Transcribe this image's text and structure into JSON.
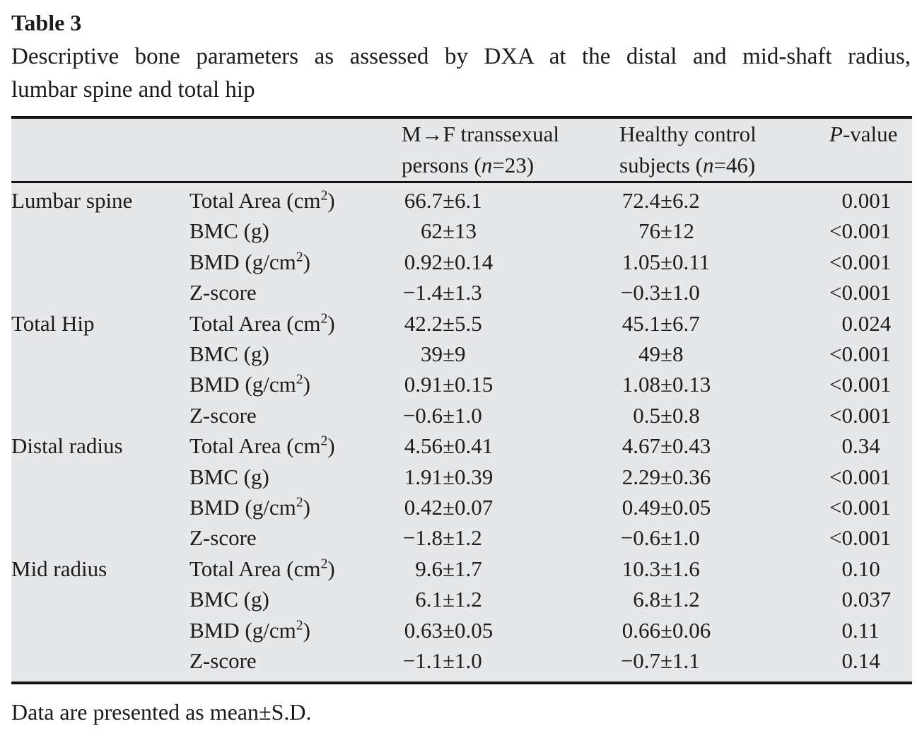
{
  "page": {
    "title": "Table 3",
    "caption_line1": "Descriptive bone parameters as assessed by DXA at the distal and mid-shaft radius,",
    "caption_line2": "lumbar spine and total hip",
    "footnote": "Data are presented as mean±S.D."
  },
  "table": {
    "header": {
      "group_col": "",
      "param_col": "",
      "mtf_html": "M→F transsexual<br>persons (<i>n</i>=23)",
      "control_html": "Healthy control<br>subjects (<i>n</i>=46)",
      "pvalue_html": "<i>P</i>-value"
    },
    "groups": [
      {
        "label": "Lumbar spine",
        "rows": [
          {
            "param": "Total Area (cm^2)",
            "mtf": "66.7±6.1",
            "control": "72.4±6.2",
            "p": "0.001"
          },
          {
            "param": "BMC (g)",
            "mtf": "62±13",
            "control": "76±12",
            "p": "<0.001"
          },
          {
            "param": "BMD (g/cm^2)",
            "mtf": "0.92±0.14",
            "control": "1.05±0.11",
            "p": "<0.001"
          },
          {
            "param": "Z-score",
            "mtf": "−1.4±1.3",
            "control": "−0.3±1.0",
            "p": "<0.001"
          }
        ]
      },
      {
        "label": "Total Hip",
        "rows": [
          {
            "param": "Total Area (cm^2)",
            "mtf": "42.2±5.5",
            "control": "45.1±6.7",
            "p": "0.024"
          },
          {
            "param": "BMC (g)",
            "mtf": "39±9",
            "control": "49±8",
            "p": "<0.001"
          },
          {
            "param": "BMD (g/cm^2)",
            "mtf": "0.91±0.15",
            "control": "1.08±0.13",
            "p": "<0.001"
          },
          {
            "param": "Z-score",
            "mtf": "−0.6±1.0",
            "control": "0.5±0.8",
            "p": "<0.001"
          }
        ]
      },
      {
        "label": "Distal radius",
        "rows": [
          {
            "param": "Total Area (cm^2)",
            "mtf": "4.56±0.41",
            "control": "4.67±0.43",
            "p": "0.34"
          },
          {
            "param": "BMC (g)",
            "mtf": "1.91±0.39",
            "control": "2.29±0.36",
            "p": "<0.001"
          },
          {
            "param": "BMD (g/cm^2)",
            "mtf": "0.42±0.07",
            "control": "0.49±0.05",
            "p": "<0.001"
          },
          {
            "param": "Z-score",
            "mtf": "−1.8±1.2",
            "control": "−0.6±1.0",
            "p": "<0.001"
          }
        ]
      },
      {
        "label": "Mid radius",
        "rows": [
          {
            "param": "Total Area (cm^2)",
            "mtf": "9.6±1.7",
            "control": "10.3±1.6",
            "p": "0.10"
          },
          {
            "param": "BMC (g)",
            "mtf": "6.1±1.2",
            "control": "6.8±1.2",
            "p": "0.037"
          },
          {
            "param": "BMD (g/cm^2)",
            "mtf": "0.63±0.05",
            "control": "0.66±0.06",
            "p": "0.11"
          },
          {
            "param": "Z-score",
            "mtf": "−1.1±1.0",
            "control": "−0.7±1.1",
            "p": "0.14"
          }
        ]
      }
    ]
  },
  "colors": {
    "table_background": "#e6e7e9",
    "rule": "#151414",
    "text": "#1e1b1b",
    "page_background": "#ffffff"
  }
}
